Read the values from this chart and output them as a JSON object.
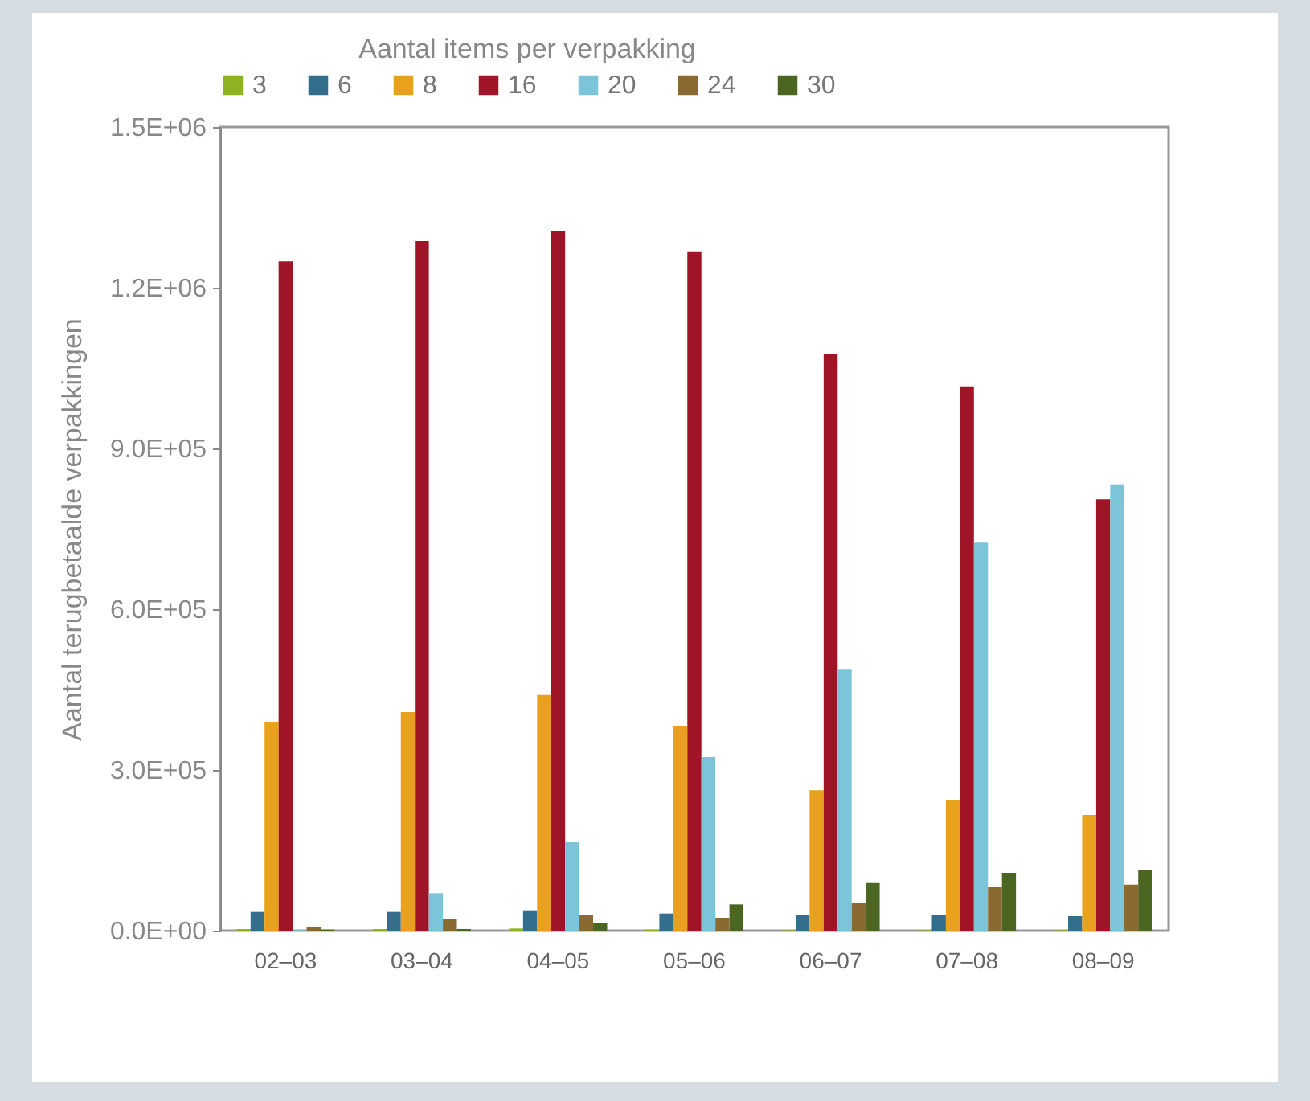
{
  "chart_data": {
    "type": "bar",
    "ylabel": "Aantal terugbetaalde verpakkingen",
    "legend_title": "Aantal items per verpakking",
    "legend": "top",
    "categories": [
      "02–03",
      "03–04",
      "04–05",
      "05–06",
      "06–07",
      "07–08",
      "08–09"
    ],
    "ylim": [
      0,
      1500000
    ],
    "yticks": [
      {
        "value": 0,
        "label": "0.0E+00"
      },
      {
        "value": 300000,
        "label": "3.0E+05"
      },
      {
        "value": 600000,
        "label": "6.0E+05"
      },
      {
        "value": 900000,
        "label": "9.0E+05"
      },
      {
        "value": 1200000,
        "label": "1.2E+06"
      },
      {
        "value": 1500000,
        "label": "1.5E+06"
      }
    ],
    "grid": false,
    "series": [
      {
        "name": "3",
        "color": "#8db320",
        "values": [
          3000,
          3000,
          4000,
          2000,
          1000,
          1000,
          1000
        ]
      },
      {
        "name": "6",
        "color": "#336e8c",
        "values": [
          35000,
          35000,
          38000,
          32000,
          30000,
          30000,
          27000
        ]
      },
      {
        "name": "8",
        "color": "#e8a11c",
        "values": [
          389000,
          408000,
          440000,
          381000,
          262000,
          243000,
          216000
        ]
      },
      {
        "name": "16",
        "color": "#a01428",
        "values": [
          1249000,
          1287000,
          1306000,
          1268000,
          1076000,
          1016000,
          805000
        ]
      },
      {
        "name": "20",
        "color": "#7cc4da",
        "values": [
          1000,
          70000,
          165000,
          324000,
          487000,
          724000,
          833000
        ]
      },
      {
        "name": "24",
        "color": "#8a6a30",
        "values": [
          6000,
          22000,
          30000,
          24000,
          51000,
          81000,
          86000
        ]
      },
      {
        "name": "30",
        "color": "#4a6620",
        "values": [
          2000,
          3000,
          14000,
          49000,
          89000,
          108000,
          113000
        ]
      }
    ]
  }
}
